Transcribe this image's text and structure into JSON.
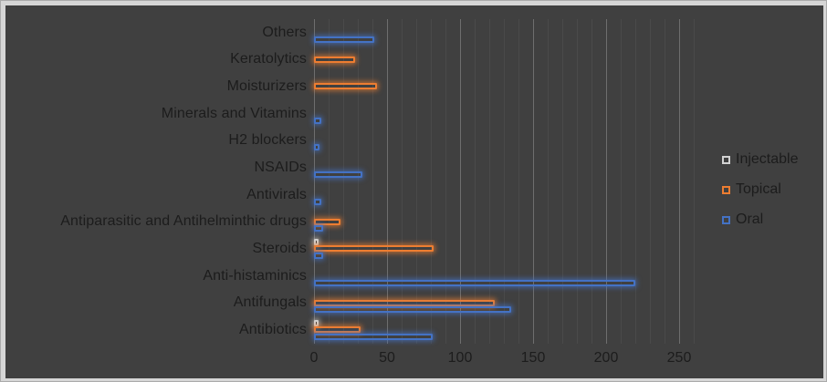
{
  "chart_data": {
    "type": "bar",
    "orientation": "horizontal",
    "title": "",
    "xlabel": "",
    "ylabel": "",
    "categories": [
      "Others",
      "Keratolytics",
      "Moisturizers",
      "Minerals and Vitamins",
      "H2 blockers",
      "NSAIDs",
      "Antivirals",
      "Antiparasitic and Antihelminthic drugs",
      "Steroids",
      "Anti-histaminics",
      "Antifungals",
      "Antibiotics"
    ],
    "series": [
      {
        "name": "Injectable",
        "color": "#D2D2D2",
        "values": [
          null,
          null,
          null,
          null,
          null,
          null,
          null,
          null,
          3,
          null,
          null,
          3
        ]
      },
      {
        "name": "Topical",
        "color": "#ED7D31",
        "values": [
          null,
          28,
          43,
          null,
          null,
          null,
          null,
          18,
          82,
          null,
          124,
          32
        ]
      },
      {
        "name": "Oral",
        "color": "#4472C4",
        "values": [
          41,
          null,
          null,
          5,
          4,
          33,
          5,
          6,
          6,
          220,
          135,
          81
        ]
      }
    ],
    "axis": {
      "tick_labels": [
        "0",
        "50",
        "100",
        "150",
        "200",
        "250"
      ],
      "tick_values": [
        0,
        50,
        100,
        150,
        200,
        250
      ],
      "max": 260,
      "minor_step": 10,
      "major_step": 50,
      "grid": true
    },
    "legend": {
      "position": "right",
      "entries": [
        "Injectable",
        "Topical",
        "Oral"
      ]
    },
    "style": {
      "background": "#404040",
      "frame": "#D6D6D6",
      "text_color": "#1C1C1C",
      "grid_minor": "#4A4A4A",
      "grid_major": "#6E6E6E",
      "bar_glow": true
    }
  }
}
